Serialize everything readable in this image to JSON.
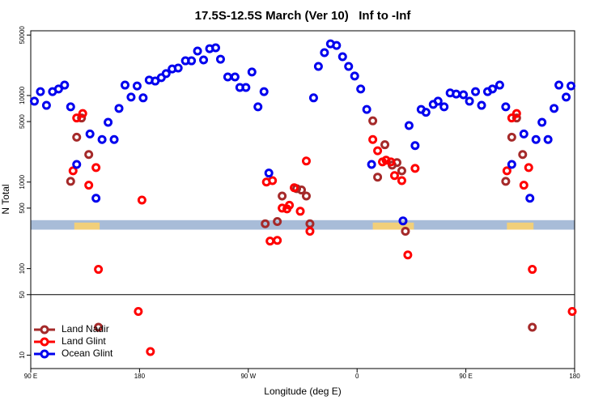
{
  "chart_data": {
    "type": "scatter",
    "title": "17.5S-12.5S March (Ver 10)   Inf to -Inf",
    "xlabel": "Longitude (deg E)",
    "ylabel": "N Total",
    "log_y": true,
    "xlim": [
      90,
      540
    ],
    "xticks": [
      {
        "value": 90,
        "label": "90 E"
      },
      180,
      {
        "value": 270,
        "label": "90 W"
      },
      {
        "value": 360,
        "label": "0"
      },
      {
        "value": 450,
        "label": "90 E"
      },
      {
        "value": 540,
        "label": "180"
      }
    ],
    "ylim": [
      7,
      56000
    ],
    "yticks": [
      10,
      50,
      100,
      500,
      1000,
      5000,
      10000,
      50000
    ],
    "hline": 50,
    "band": {
      "ylim": [
        282,
        363
      ],
      "color": "#a8bcd8"
    },
    "shaded_regions": [
      {
        "xlim": [
          126,
          147
        ],
        "color": "#f8d070"
      },
      {
        "xlim": [
          373,
          407
        ],
        "color": "#f8d070"
      },
      {
        "xlim": [
          484,
          506
        ],
        "color": "#f8d070"
      }
    ],
    "legend": "bottom-left",
    "series": [
      {
        "name": "Land Nadir",
        "color": "#a52a2a",
        "x": [
          123,
          128,
          132,
          138,
          146,
          284,
          294,
          298,
          310,
          314,
          318,
          321,
          373,
          377,
          383,
          389,
          393,
          397,
          400,
          483,
          488,
          492,
          497,
          505
        ],
        "values": [
          1020,
          3300,
          5500,
          2080,
          21,
          330,
          350,
          690,
          840,
          810,
          690,
          330,
          5100,
          1140,
          2700,
          1570,
          1680,
          1350,
          270,
          1020,
          3300,
          5500,
          2080,
          21
        ]
      },
      {
        "name": "Land Glint",
        "color": "#ff0000",
        "x": [
          125,
          128,
          133,
          138,
          144,
          146,
          179,
          182,
          189,
          285,
          288,
          290,
          294,
          298,
          302,
          304,
          308,
          313,
          318,
          321,
          373,
          377,
          381,
          384,
          388,
          391,
          397,
          402,
          408,
          484,
          488,
          492,
          498,
          502,
          505,
          538
        ],
        "values": [
          1350,
          5500,
          6200,
          920,
          1470,
          98,
          32,
          620,
          11,
          1000,
          208,
          1040,
          212,
          500,
          490,
          540,
          860,
          460,
          1750,
          270,
          3100,
          2300,
          1710,
          1790,
          1710,
          1190,
          1040,
          144,
          1440,
          1350,
          5500,
          6200,
          920,
          1470,
          98,
          32
        ]
      },
      {
        "name": "Ocean Glint",
        "color": "#0000ee",
        "x": [
          93,
          98,
          103,
          108,
          113,
          118,
          123,
          128,
          139,
          144,
          149,
          154,
          159,
          163,
          168,
          173,
          178,
          183,
          188,
          193,
          198,
          202,
          207,
          212,
          218,
          223,
          228,
          233,
          238,
          243,
          247,
          253,
          259,
          263,
          268,
          273,
          278,
          283,
          287,
          324,
          328,
          333,
          338,
          343,
          348,
          353,
          358,
          363,
          368,
          372,
          398,
          403,
          408,
          413,
          417,
          423,
          427,
          432,
          437,
          442,
          448,
          453,
          458,
          463,
          468,
          472,
          478,
          483,
          488,
          498,
          503,
          508,
          513,
          518,
          523,
          527,
          533,
          537
        ],
        "values": [
          8600,
          11100,
          7700,
          11100,
          11900,
          13200,
          7400,
          1600,
          3600,
          650,
          3100,
          4900,
          3100,
          7100,
          13200,
          9600,
          12900,
          9400,
          15100,
          14700,
          16100,
          17900,
          20300,
          20800,
          25200,
          25200,
          32700,
          25800,
          34800,
          35600,
          26300,
          16400,
          16400,
          12400,
          12400,
          18700,
          7400,
          11100,
          1270,
          9400,
          21700,
          31300,
          39600,
          37900,
          28100,
          21700,
          16800,
          11900,
          6900,
          1600,
          356,
          4500,
          2640,
          6900,
          6400,
          7900,
          8600,
          7400,
          10700,
          10400,
          10200,
          8600,
          11100,
          7700,
          11100,
          11900,
          13200,
          7400,
          1600,
          3600,
          650,
          3100,
          4900,
          3100,
          7100,
          13200,
          9600,
          12900
        ]
      }
    ]
  }
}
